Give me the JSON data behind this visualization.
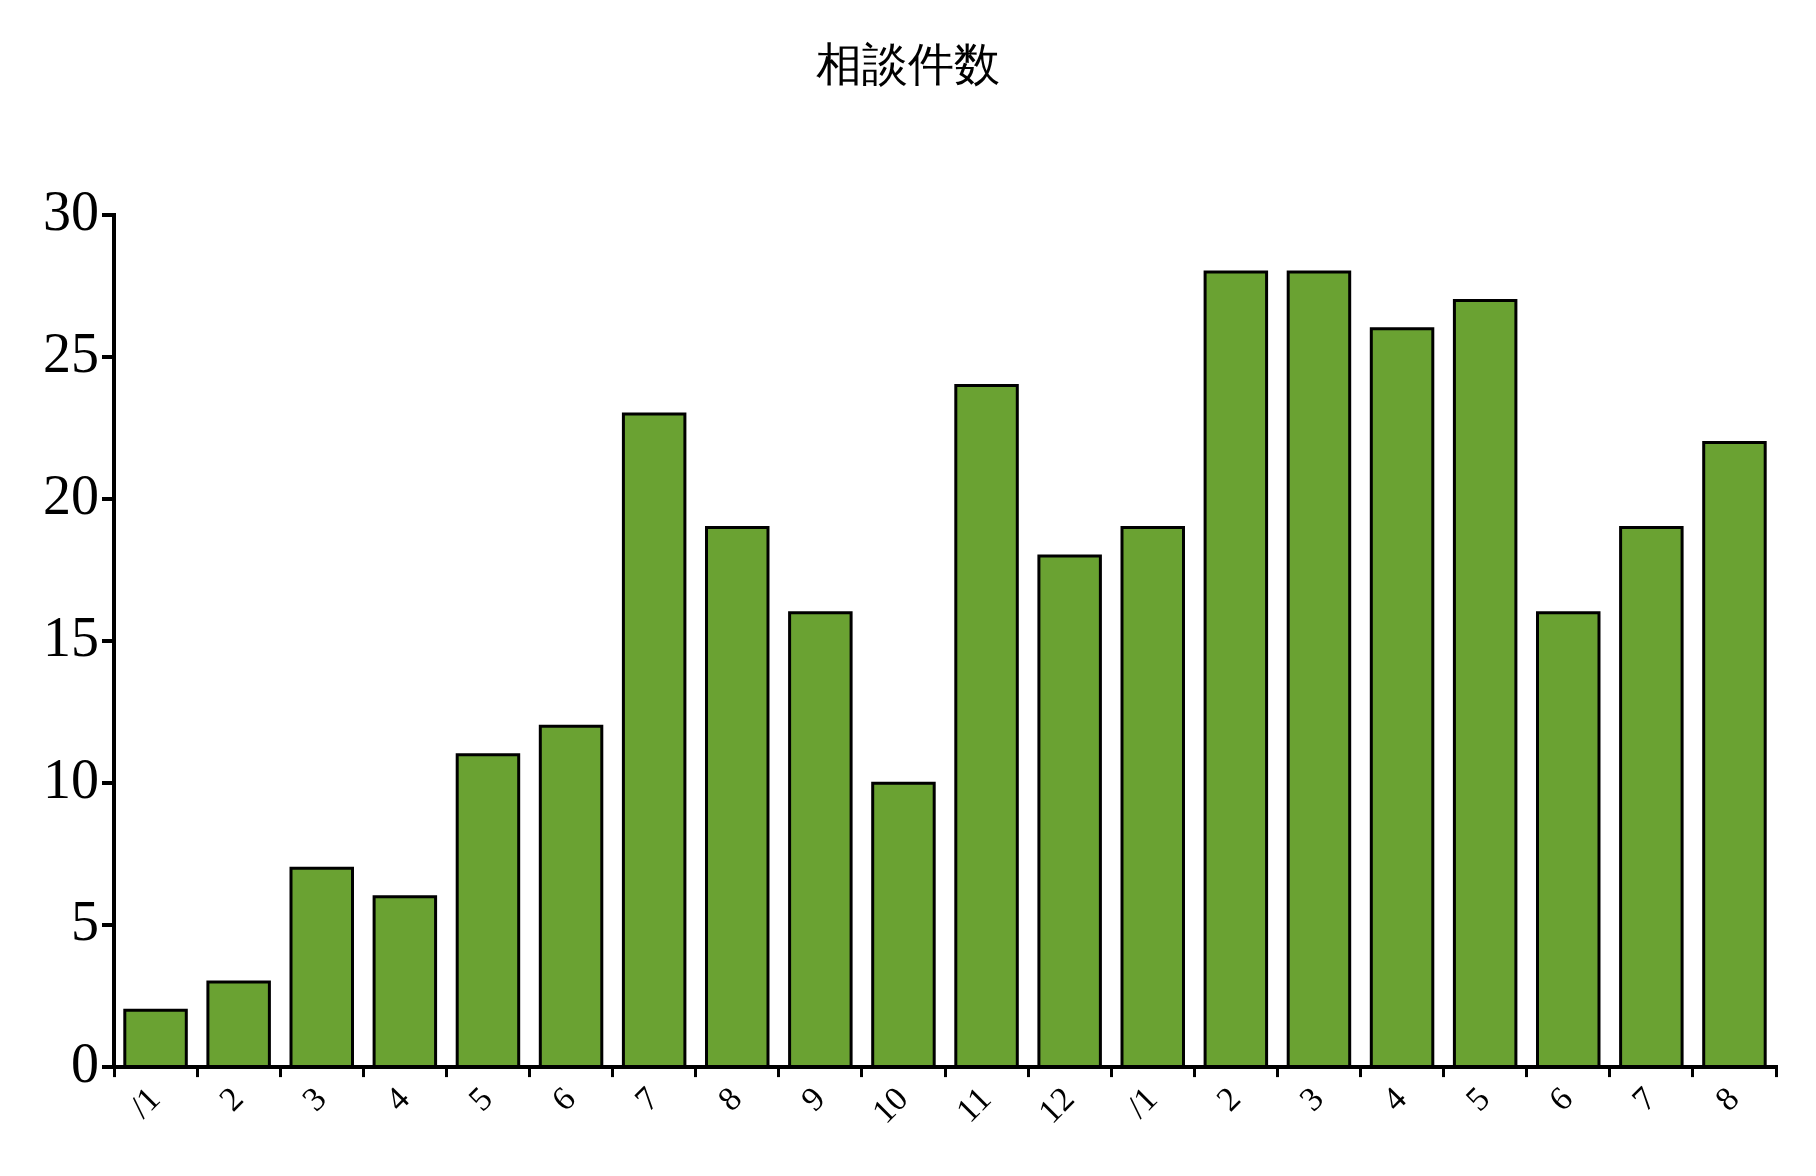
{
  "chart_data": {
    "type": "bar",
    "title": "相談件数",
    "categories": [
      "/1",
      "2",
      "3",
      "4",
      "5",
      "6",
      "7",
      "8",
      "9",
      "10",
      "11",
      "12",
      "/1",
      "2",
      "3",
      "4",
      "5",
      "6",
      "7",
      "8"
    ],
    "values": [
      2,
      3,
      7,
      6,
      11,
      12,
      23,
      19,
      16,
      10,
      24,
      18,
      19,
      28,
      28,
      26,
      27,
      16,
      19,
      22
    ],
    "color": "#6aa232",
    "ylim": [
      0,
      30
    ],
    "yticks": [
      0,
      5,
      10,
      15,
      20,
      25,
      30
    ],
    "grid": false,
    "legend": false
  }
}
